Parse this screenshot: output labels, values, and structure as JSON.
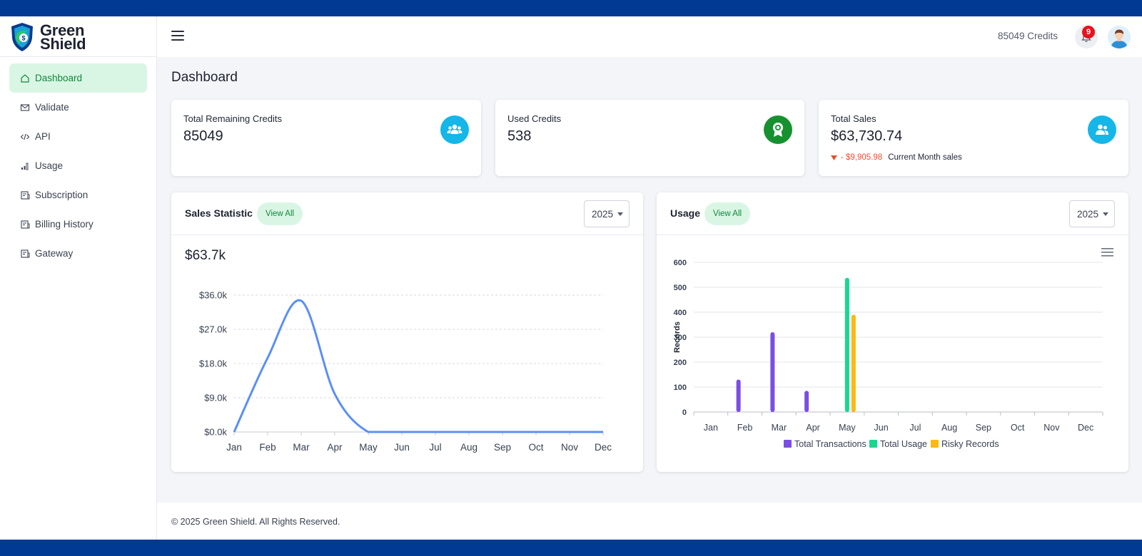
{
  "brand": {
    "name_line1": "Green",
    "name_line2": "Shield",
    "accent": "#12883a",
    "frame_color": "#003a92"
  },
  "sidebar": {
    "items": [
      {
        "label": "Dashboard",
        "icon": "home-icon",
        "active": true
      },
      {
        "label": "Validate",
        "icon": "mail-icon",
        "active": false
      },
      {
        "label": "API",
        "icon": "code-icon",
        "active": false
      },
      {
        "label": "Usage",
        "icon": "signal-bars-icon",
        "active": false
      },
      {
        "label": "Subscription",
        "icon": "receipt-icon",
        "active": false
      },
      {
        "label": "Billing History",
        "icon": "receipt-icon",
        "active": false
      },
      {
        "label": "Gateway",
        "icon": "receipt-icon",
        "active": false
      }
    ]
  },
  "header": {
    "credits_text": "85049 Credits",
    "notification_count": "9"
  },
  "page": {
    "title": "Dashboard"
  },
  "stats": {
    "remaining": {
      "label": "Total Remaining Credits",
      "value": "85049",
      "icon_color": "#15b6e8"
    },
    "used": {
      "label": "Used Credits",
      "value": "538",
      "icon_color": "#17912f"
    },
    "sales": {
      "label": "Total Sales",
      "value": "$63,730.74",
      "trend_value": "- $9,905.98",
      "trend_desc": "Current Month sales",
      "icon_color": "#15b6e8"
    }
  },
  "sales_panel": {
    "title": "Sales Statistic",
    "view_all": "View All",
    "year": "2025",
    "total": "$63.7k"
  },
  "usage_panel": {
    "title": "Usage",
    "view_all": "View All",
    "year": "2025"
  },
  "footer": {
    "text": "© 2025 Green Shield. All Rights Reserved."
  },
  "chart_data": [
    {
      "type": "line",
      "title": "Sales Statistic",
      "categories": [
        "Jan",
        "Feb",
        "Mar",
        "Apr",
        "May",
        "Jun",
        "Jul",
        "Aug",
        "Sep",
        "Oct",
        "Nov",
        "Dec"
      ],
      "values": [
        0,
        19500,
        34500,
        10000,
        0,
        0,
        0,
        0,
        0,
        0,
        0,
        0
      ],
      "ylim": [
        0,
        36000
      ],
      "yticks": [
        0,
        9000,
        18000,
        27000,
        36000
      ],
      "ytick_labels": [
        "$0.0k",
        "$9.0k",
        "$18.0k",
        "$27.0k",
        "$36.0k"
      ],
      "xlabel": "",
      "ylabel": "",
      "color": "#5b8ff5"
    },
    {
      "type": "bar",
      "title": "Usage",
      "categories": [
        "Jan",
        "Feb",
        "Mar",
        "Apr",
        "May",
        "Jun",
        "Jul",
        "Aug",
        "Sep",
        "Oct",
        "Nov",
        "Dec"
      ],
      "series": [
        {
          "name": "Total Transactions",
          "color": "#7b4ee3",
          "values": [
            0,
            130,
            320,
            85,
            0,
            0,
            0,
            0,
            0,
            0,
            0,
            0
          ]
        },
        {
          "name": "Total Usage",
          "color": "#17d88f",
          "values": [
            0,
            0,
            0,
            0,
            538,
            0,
            0,
            0,
            0,
            0,
            0,
            0
          ]
        },
        {
          "name": "Risky Records",
          "color": "#fdb813",
          "values": [
            0,
            0,
            0,
            0,
            390,
            0,
            0,
            0,
            0,
            0,
            0,
            0
          ]
        }
      ],
      "ylim": [
        0,
        600
      ],
      "yticks": [
        0,
        100,
        200,
        300,
        400,
        500,
        600
      ],
      "xlabel": "",
      "ylabel": "Records",
      "legend": "bottom"
    }
  ]
}
